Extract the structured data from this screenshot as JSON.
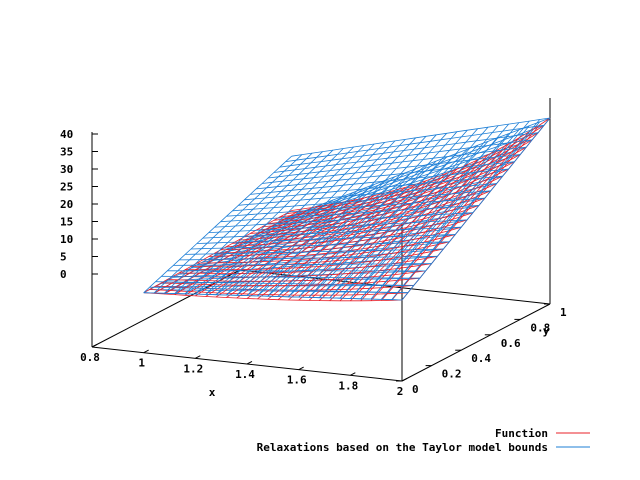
{
  "chart_data": {
    "type": "surface",
    "xlabel": "x",
    "ylabel": "y",
    "x_ticks": [
      "0.8",
      "1",
      "1.2",
      "1.4",
      "1.6",
      "1.8",
      "2"
    ],
    "y_ticks": [
      "0",
      "0.2",
      "0.4",
      "0.6",
      "0.8",
      "1"
    ],
    "z_ticks": [
      "0",
      "5",
      "10",
      "15",
      "20",
      "25",
      "30",
      "35",
      "40"
    ],
    "xlim": [
      0.8,
      2
    ],
    "ylim": [
      0,
      1
    ],
    "zlim": [
      0,
      40
    ],
    "grid": false,
    "legend_position": "bottom-right",
    "series": [
      {
        "name": "Function",
        "color": "#e8202a",
        "x_range": [
          1,
          2
        ],
        "y_range": [
          0,
          1
        ],
        "corner_values": {
          "x1_y0": 0,
          "x2_y0": 6,
          "x1_y1": 2.7,
          "x2_y1": 36
        }
      },
      {
        "name": "Relaxations based on the Taylor model bounds",
        "color": "#1e7fd6",
        "x_range": [
          1,
          2
        ],
        "y_range": [
          0,
          1
        ],
        "upper_corner_values": {
          "x1_y0": 0,
          "x2_y0": 6,
          "x1_y1": 17,
          "x2_y1": 36
        },
        "lower_corner_values": {
          "x1_y0": 0,
          "x2_y0": 6,
          "x1_y1": 0,
          "x2_y1": 36
        }
      }
    ]
  }
}
